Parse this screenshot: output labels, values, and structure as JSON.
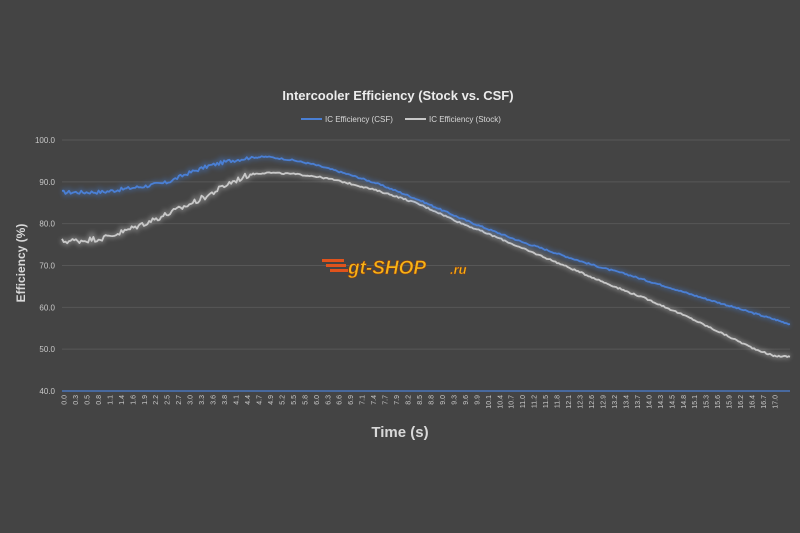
{
  "chart_data": {
    "type": "line",
    "title": "Intercooler Efficiency (Stock vs. CSF)",
    "xlabel": "Time (s)",
    "ylabel": "Efficiency (%)",
    "ylim": [
      40,
      100
    ],
    "yticks": [
      "40.0",
      "50.0",
      "60.0",
      "70.0",
      "80.0",
      "90.0",
      "100.0"
    ],
    "xlim": [
      0,
      17.4
    ],
    "xticks": [
      "0.0",
      "0.3",
      "0.5",
      "0.8",
      "1.1",
      "1.4",
      "1.6",
      "1.9",
      "2.2",
      "2.5",
      "2.7",
      "3.0",
      "3.3",
      "3.6",
      "3.8",
      "4.1",
      "4.4",
      "4.7",
      "4.9",
      "5.2",
      "5.5",
      "5.8",
      "6.0",
      "6.3",
      "6.6",
      "6.9",
      "7.1",
      "7.4",
      "7.7",
      "7.9",
      "8.2",
      "8.5",
      "8.8",
      "9.0",
      "9.3",
      "9.6",
      "9.9",
      "10.1",
      "10.4",
      "10.7",
      "11.0",
      "11.2",
      "11.5",
      "11.8",
      "12.1",
      "12.3",
      "12.6",
      "12.9",
      "13.2",
      "13.4",
      "13.7",
      "14.0",
      "14.3",
      "14.5",
      "14.8",
      "15.1",
      "15.3",
      "15.6",
      "15.9",
      "16.2",
      "16.4",
      "16.7",
      "17.0"
    ],
    "grid": true,
    "legend_position": "top",
    "series": [
      {
        "name": "IC Efficiency (CSF)",
        "color": "#4a7fd4",
        "x": [
          0,
          0.5,
          1.0,
          1.5,
          2.0,
          2.5,
          3.0,
          3.5,
          4.0,
          4.5,
          4.9,
          5.5,
          6.0,
          6.5,
          7.0,
          7.5,
          8.0,
          8.5,
          9.0,
          9.5,
          10.0,
          10.5,
          11.0,
          11.5,
          12.0,
          12.5,
          13.0,
          13.5,
          14.0,
          14.5,
          15.0,
          15.5,
          16.0,
          16.5,
          17.0,
          17.4
        ],
        "values": [
          87.5,
          87.5,
          87.6,
          88.3,
          89.0,
          89.8,
          92.0,
          93.8,
          95.0,
          95.8,
          96.0,
          95.2,
          94.2,
          92.8,
          91.3,
          89.7,
          87.8,
          85.8,
          83.6,
          81.4,
          79.4,
          77.5,
          75.6,
          74.0,
          72.3,
          70.7,
          69.2,
          67.9,
          66.3,
          64.8,
          63.2,
          61.7,
          60.2,
          58.7,
          57.2,
          56.0
        ]
      },
      {
        "name": "IC Efficiency (Stock)",
        "color": "#c8c8c8",
        "x": [
          0,
          0.5,
          1.0,
          1.5,
          2.0,
          2.5,
          3.0,
          3.5,
          4.0,
          4.5,
          4.9,
          5.5,
          6.0,
          6.5,
          7.0,
          7.5,
          8.0,
          8.5,
          9.0,
          9.5,
          10.0,
          10.5,
          11.0,
          11.5,
          12.0,
          12.5,
          13.0,
          13.5,
          14.0,
          14.5,
          15.0,
          15.5,
          16.0,
          16.5,
          17.0,
          17.4
        ],
        "values": [
          75.8,
          76.0,
          76.6,
          78.2,
          80.2,
          82.2,
          84.4,
          86.8,
          89.7,
          91.8,
          92.2,
          91.9,
          91.4,
          90.5,
          89.3,
          88.0,
          86.5,
          84.8,
          82.6,
          80.3,
          78.3,
          76.3,
          74.1,
          72.1,
          70.0,
          67.9,
          65.8,
          63.8,
          61.9,
          59.7,
          57.5,
          55.1,
          52.7,
          50.3,
          48.4,
          48.2
        ]
      }
    ]
  },
  "watermark": {
    "text_main": "gt-SHOP",
    "text_suffix": ".ru",
    "color_fill": "#f6b416",
    "color_stripe": "#e0531c"
  },
  "colors": {
    "background": "#444444",
    "gridline": "#575757",
    "baseline": "#4a7fd4"
  }
}
